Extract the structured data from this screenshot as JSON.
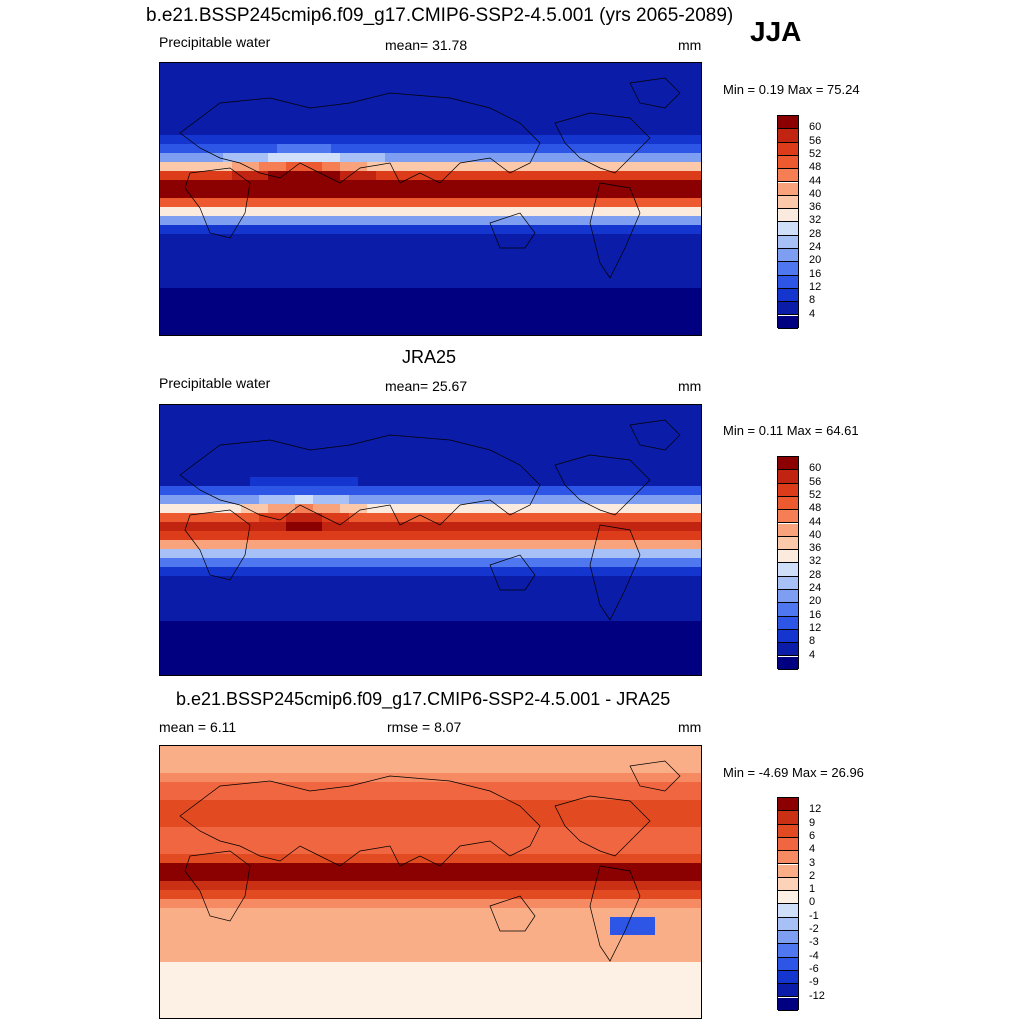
{
  "season": "JJA",
  "colors": {
    "pw_scale": [
      "#000080",
      "#0a1ca8",
      "#1535cf",
      "#2d55e6",
      "#4f77ef",
      "#7e9ef2",
      "#a7c0f6",
      "#cfdef9",
      "#fbeade",
      "#fbc8aa",
      "#f8a37c",
      "#f57e55",
      "#ee5a30",
      "#dd3c1a",
      "#c22412",
      "#8b0000"
    ],
    "diff_scale": [
      "#000080",
      "#0a1ca8",
      "#1535cf",
      "#2d55e6",
      "#4f77ef",
      "#7e9ef2",
      "#a7c0f6",
      "#cfdef9",
      "#fdf0e4",
      "#fcd3b9",
      "#f9ae88",
      "#f58a63",
      "#ef6640",
      "#e24a22",
      "#c93014",
      "#8b0000"
    ]
  },
  "chart_data": [
    {
      "type": "heatmap",
      "title": "b.e21.BSSP245cmip6.f09_g17.CMIP6-SSP2-4.5.001 (yrs 2065-2089)",
      "left_label": "Precipitable water",
      "center_label": "mean=  31.78",
      "units": "mm",
      "min_label": "Min =   0.19 Max =  75.24",
      "stats": {
        "mean": 31.78,
        "min": 0.19,
        "max": 75.24
      },
      "colorbar_ticks": [
        "60",
        "56",
        "52",
        "48",
        "44",
        "40",
        "36",
        "32",
        "28",
        "24",
        "20",
        "16",
        "12",
        "8",
        "4"
      ]
    },
    {
      "type": "heatmap",
      "title": "JRA25",
      "left_label": "Precipitable water",
      "center_label": "mean=  25.67",
      "units": "mm",
      "min_label": "Min =   0.11 Max =  64.61",
      "stats": {
        "mean": 25.67,
        "min": 0.11,
        "max": 64.61
      },
      "colorbar_ticks": [
        "60",
        "56",
        "52",
        "48",
        "44",
        "40",
        "36",
        "32",
        "28",
        "24",
        "20",
        "16",
        "12",
        "8",
        "4"
      ]
    },
    {
      "type": "heatmap",
      "title": "b.e21.BSSP245cmip6.f09_g17.CMIP6-SSP2-4.5.001 - JRA25",
      "left_label": "mean =   6.11",
      "center_label": "rmse =   8.07",
      "units": "mm",
      "min_label": "Min =  -4.69 Max =  26.96",
      "stats": {
        "mean": 6.11,
        "rmse": 8.07,
        "min": -4.69,
        "max": 26.96
      },
      "colorbar_ticks": [
        "12",
        "9",
        "6",
        "4",
        "3",
        "2",
        "1",
        "0",
        "-1",
        "-2",
        "-3",
        "-4",
        "-6",
        "-9",
        "-12"
      ]
    }
  ]
}
